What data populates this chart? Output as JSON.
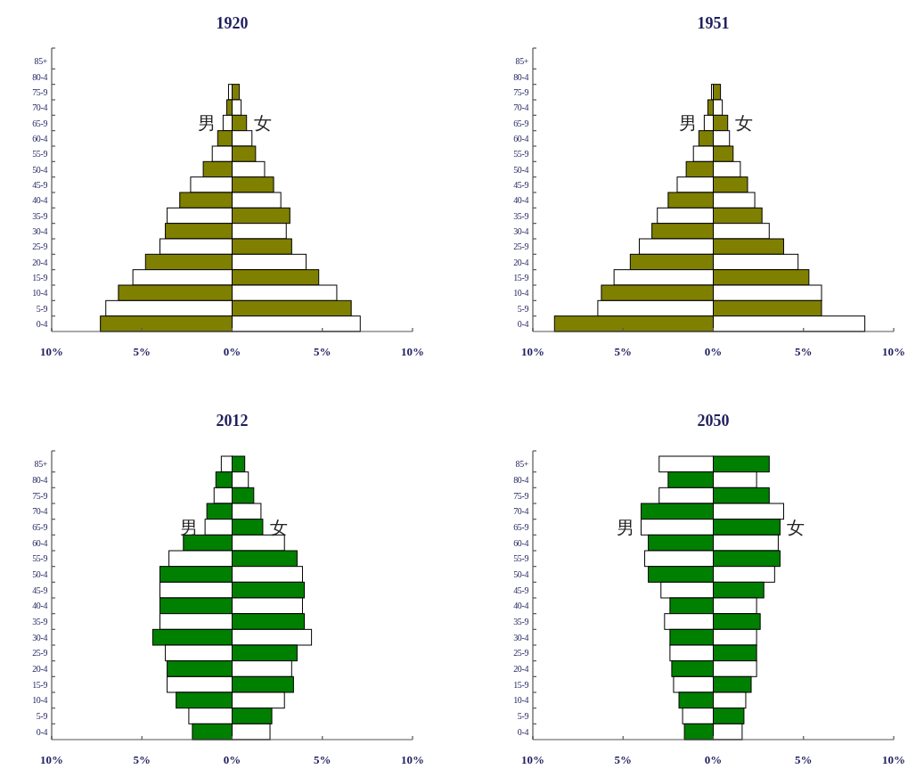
{
  "chart_data": [
    {
      "type": "bar",
      "orientation": "horizontal",
      "stacked": true,
      "title": "1920",
      "categories": [
        "85+",
        "80-4",
        "75-9",
        "70-4",
        "65-9",
        "60-4",
        "55-9",
        "50-4",
        "45-9",
        "40-4",
        "35-9",
        "30-4",
        "25-9",
        "20-4",
        "15-9",
        "10-4",
        "5-9",
        "0-4"
      ],
      "xlim": [
        -10,
        10
      ],
      "xticks": [
        {
          "value": -10,
          "label": "10%"
        },
        {
          "value": -5,
          "label": "5%"
        },
        {
          "value": 0,
          "label": "0%"
        },
        {
          "value": 5,
          "label": "5%"
        },
        {
          "value": 10,
          "label": "10%"
        }
      ],
      "series": [
        {
          "name": "男",
          "values": [
            null,
            null,
            -0.2,
            -0.3,
            -0.5,
            -0.8,
            -1.1,
            -1.6,
            -2.3,
            -2.9,
            -3.6,
            -3.7,
            -4.0,
            -4.8,
            -5.5,
            -6.3,
            -7.0,
            -7.3
          ],
          "colors": [
            null,
            null,
            "#ffffff",
            "#808000",
            "#ffffff",
            "#808000",
            "#ffffff",
            "#808000",
            "#ffffff",
            "#808000",
            "#ffffff",
            "#808000",
            "#ffffff",
            "#808000",
            "#ffffff",
            "#808000",
            "#ffffff",
            "#808000"
          ]
        },
        {
          "name": "女",
          "values": [
            null,
            null,
            0.4,
            0.5,
            0.8,
            1.1,
            1.3,
            1.8,
            2.3,
            2.7,
            3.2,
            3.0,
            3.3,
            4.1,
            4.8,
            5.8,
            6.6,
            7.1
          ],
          "colors": [
            null,
            null,
            "#808000",
            "#ffffff",
            "#808000",
            "#ffffff",
            "#808000",
            "#ffffff",
            "#808000",
            "#ffffff",
            "#808000",
            "#ffffff",
            "#808000",
            "#ffffff",
            "#808000",
            "#ffffff",
            "#808000",
            "#ffffff"
          ]
        }
      ]
    },
    {
      "type": "bar",
      "orientation": "horizontal",
      "stacked": true,
      "title": "1951",
      "categories": [
        "85+",
        "80-4",
        "75-9",
        "70-4",
        "65-9",
        "60-4",
        "55-9",
        "50-4",
        "45-9",
        "40-4",
        "35-9",
        "30-4",
        "25-9",
        "20-4",
        "15-9",
        "10-4",
        "5-9",
        "0-4"
      ],
      "xlim": [
        -10,
        10
      ],
      "xticks": [
        {
          "value": -10,
          "label": "10%"
        },
        {
          "value": -5,
          "label": "5%"
        },
        {
          "value": 0,
          "label": "0%"
        },
        {
          "value": 5,
          "label": "5%"
        },
        {
          "value": 10,
          "label": "10%"
        }
      ],
      "series": [
        {
          "name": "男",
          "values": [
            null,
            null,
            -0.1,
            -0.3,
            -0.5,
            -0.8,
            -1.1,
            -1.5,
            -2.0,
            -2.5,
            -3.1,
            -3.4,
            -4.1,
            -4.6,
            -5.5,
            -6.2,
            -6.4,
            -8.8
          ],
          "colors": [
            null,
            null,
            "#ffffff",
            "#808000",
            "#ffffff",
            "#808000",
            "#ffffff",
            "#808000",
            "#ffffff",
            "#808000",
            "#ffffff",
            "#808000",
            "#ffffff",
            "#808000",
            "#ffffff",
            "#808000",
            "#ffffff",
            "#808000"
          ]
        },
        {
          "name": "女",
          "values": [
            null,
            null,
            0.4,
            0.5,
            0.8,
            0.9,
            1.1,
            1.5,
            1.9,
            2.3,
            2.7,
            3.1,
            3.9,
            4.7,
            5.3,
            6.0,
            6.0,
            8.4
          ],
          "colors": [
            null,
            null,
            "#808000",
            "#ffffff",
            "#808000",
            "#ffffff",
            "#808000",
            "#ffffff",
            "#808000",
            "#ffffff",
            "#808000",
            "#ffffff",
            "#808000",
            "#ffffff",
            "#808000",
            "#ffffff",
            "#808000",
            "#ffffff"
          ]
        }
      ]
    },
    {
      "type": "bar",
      "orientation": "horizontal",
      "stacked": true,
      "title": "2012",
      "categories": [
        "85+",
        "80-4",
        "75-9",
        "70-4",
        "65-9",
        "60-4",
        "55-9",
        "50-4",
        "45-9",
        "40-4",
        "35-9",
        "30-4",
        "25-9",
        "20-4",
        "15-9",
        "10-4",
        "5-9",
        "0-4"
      ],
      "xlim": [
        -10,
        10
      ],
      "xticks": [
        {
          "value": -10,
          "label": "10%"
        },
        {
          "value": -5,
          "label": "5%"
        },
        {
          "value": 0,
          "label": "0%"
        },
        {
          "value": 5,
          "label": "5%"
        },
        {
          "value": 10,
          "label": "10%"
        }
      ],
      "series": [
        {
          "name": "男",
          "values": [
            -0.6,
            -0.9,
            -1.0,
            -1.4,
            -1.5,
            -2.7,
            -3.5,
            -4.0,
            -4.0,
            -4.0,
            -4.0,
            -4.4,
            -3.7,
            -3.6,
            -3.6,
            -3.1,
            -2.4,
            -2.2
          ],
          "colors": [
            "#ffffff",
            "#008000",
            "#ffffff",
            "#008000",
            "#ffffff",
            "#008000",
            "#ffffff",
            "#008000",
            "#ffffff",
            "#008000",
            "#ffffff",
            "#008000",
            "#ffffff",
            "#008000",
            "#ffffff",
            "#008000",
            "#ffffff",
            "#008000"
          ]
        },
        {
          "name": "女",
          "values": [
            0.7,
            0.9,
            1.2,
            1.6,
            1.7,
            2.9,
            3.6,
            3.9,
            4.0,
            3.9,
            4.0,
            4.4,
            3.6,
            3.3,
            3.4,
            2.9,
            2.2,
            2.1
          ],
          "colors": [
            "#008000",
            "#ffffff",
            "#008000",
            "#ffffff",
            "#008000",
            "#ffffff",
            "#008000",
            "#ffffff",
            "#008000",
            "#ffffff",
            "#008000",
            "#ffffff",
            "#008000",
            "#ffffff",
            "#008000",
            "#ffffff",
            "#008000",
            "#ffffff"
          ]
        }
      ]
    },
    {
      "type": "bar",
      "orientation": "horizontal",
      "stacked": true,
      "title": "2050",
      "categories": [
        "85+",
        "80-4",
        "75-9",
        "70-4",
        "65-9",
        "60-4",
        "55-9",
        "50-4",
        "45-9",
        "40-4",
        "35-9",
        "30-4",
        "25-9",
        "20-4",
        "15-9",
        "10-4",
        "5-9",
        "0-4"
      ],
      "xlim": [
        -10,
        10
      ],
      "xticks": [
        {
          "value": -10,
          "label": "10%"
        },
        {
          "value": -5,
          "label": "5%"
        },
        {
          "value": 0,
          "label": "0%"
        },
        {
          "value": 5,
          "label": "5%"
        },
        {
          "value": 10,
          "label": "10%"
        }
      ],
      "series": [
        {
          "name": "男",
          "values": [
            -3.0,
            -2.5,
            -3.0,
            -4.0,
            -4.0,
            -3.6,
            -3.8,
            -3.6,
            -2.9,
            -2.4,
            -2.7,
            -2.4,
            -2.4,
            -2.3,
            -2.2,
            -1.9,
            -1.7,
            -1.6
          ],
          "colors": [
            "#ffffff",
            "#008000",
            "#ffffff",
            "#008000",
            "#ffffff",
            "#008000",
            "#ffffff",
            "#008000",
            "#ffffff",
            "#008000",
            "#ffffff",
            "#008000",
            "#ffffff",
            "#008000",
            "#ffffff",
            "#008000",
            "#ffffff",
            "#008000"
          ]
        },
        {
          "name": "女",
          "values": [
            3.1,
            2.4,
            3.1,
            3.9,
            3.7,
            3.6,
            3.7,
            3.4,
            2.8,
            2.4,
            2.6,
            2.4,
            2.4,
            2.4,
            2.1,
            1.8,
            1.7,
            1.6
          ],
          "colors": [
            "#008000",
            "#ffffff",
            "#008000",
            "#ffffff",
            "#008000",
            "#ffffff",
            "#008000",
            "#ffffff",
            "#008000",
            "#ffffff",
            "#008000",
            "#ffffff",
            "#008000",
            "#ffffff",
            "#008000",
            "#ffffff",
            "#008000",
            "#ffffff"
          ]
        }
      ]
    }
  ]
}
